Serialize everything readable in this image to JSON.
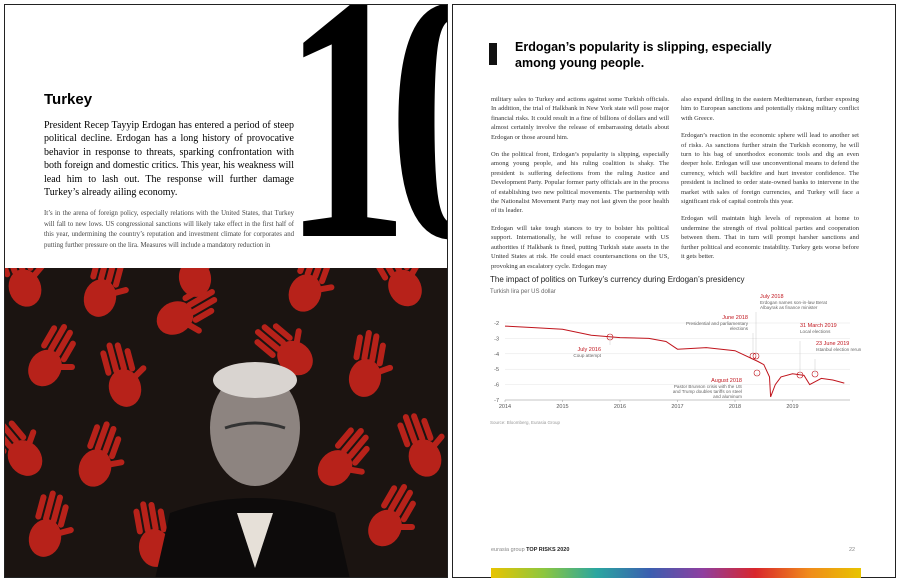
{
  "left_page": {
    "section_number": "10",
    "title": "Turkey",
    "lead": "President Recep Tayyip Erdogan has entered a period of steep political decline. Erdogan has a long history of provocative behavior in response to threats, sparking confrontation with both foreign and domestic critics. This year, his weakness will lead him to lash out. The response will further damage Turkey’s already ailing economy.",
    "body": "It’s in the arena of foreign policy, especially relations with the United States, that Turkey will fall to new lows. US congressional sanctions will likely take effect in the first half of this year, undermining the country’s reputation and investment climate for corporates and putting further pressure on the lira. Measures will include a mandatory reduction in"
  },
  "right_page": {
    "heading": "Erdogan’s popularity is slipping, especially among young people.",
    "columns": [
      [
        "military sales to Turkey and actions against some Turkish officials. In addition, the trial of Halkbank in New York state will pose major financial risks. It could result in a fine of billions of dollars and will almost certainly involve the release of embarrassing details about Erdogan or those around him.",
        "On the political front, Erdogan’s popularity is slipping, especially among young people, and his ruling coalition is shaky. The president is suffering defections from the ruling Justice and Development Party. Popular former party officials are in the process of establishing two new political movements. The partnership with the Nationalist Movement Party may not last given the poor health of its leader.",
        "Erdogan will take tough stances to try to bolster his political support. Internationally, he will refuse to cooperate with US authorities if Halkbank is fined, putting Turkish state assets in the United States at risk. He could enact countersanctions on the US, provoking an escalatory cycle. Erdogan may"
      ],
      [
        "also expand drilling in the eastern Mediterranean, further exposing him to European sanctions and potentially risking military conflict with Greece.",
        "Erdogan’s reaction in the economic sphere will lead to another set of risks. As sanctions further strain the Turkish economy, he will turn to his bag of unorthodox economic tools and dig an even deeper hole. Erdogan will use unconventional means to defend the currency, which will backfire and hurt investor confidence. The president is inclined to order state-owned banks to intervene in the market with sales of foreign currencies, and Turkey will face a significant risk of capital controls this year.",
        "Erdogan will maintain high levels of repression at home to undermine the strength of rival political parties and cooperation between them. That in turn will prompt harsher sanctions and further political and economic instability. Turkey gets worse before it gets better."
      ]
    ],
    "footer": {
      "brand": "eurasia group",
      "report": "TOP RISKS 2020",
      "page": "22"
    }
  },
  "chart_data": {
    "type": "line",
    "title": "The impact of politics on Turkey’s currency during Erdogan’s presidency",
    "subtitle": "Turkish lira per US dollar",
    "source": "Source: Bloomberg, Eurasia Group",
    "color": "#c0141c",
    "x": [
      2014.0,
      2014.5,
      2015.0,
      2015.5,
      2016.0,
      2016.5,
      2016.8,
      2017.0,
      2017.5,
      2018.0,
      2018.4,
      2018.5,
      2018.6,
      2018.62,
      2018.7,
      2018.8,
      2019.0,
      2019.2,
      2019.3,
      2019.5,
      2019.7,
      2019.9
    ],
    "values": [
      -2.2,
      -2.3,
      -2.4,
      -2.8,
      -2.95,
      -3.0,
      -3.2,
      -3.7,
      -3.6,
      -3.8,
      -4.5,
      -4.7,
      -5.5,
      -6.8,
      -6.0,
      -5.5,
      -5.3,
      -5.4,
      -6.0,
      -5.6,
      -5.7,
      -5.9
    ],
    "xlim": [
      2014,
      2020
    ],
    "xticks": [
      2014,
      2015,
      2016,
      2017,
      2018,
      2019
    ],
    "ylim": [
      -7,
      -2
    ],
    "yticks": [
      -2,
      -3,
      -4,
      -5,
      -6,
      -7
    ],
    "grid": true,
    "annotations": [
      {
        "date": "July 2016",
        "text": "Coup attempt"
      },
      {
        "date": "June 2018",
        "text": "Presidential and parliamentary elections"
      },
      {
        "date": "July 2018",
        "text": "Erdogan names son-in-law Berat Albayrak as finance minister"
      },
      {
        "date": "August 2018",
        "text": "Pastor Brunson crisis with the US and Trump doubles tariffs on steel and aluminum"
      },
      {
        "date": "31 March 2019",
        "text": "Local elections"
      },
      {
        "date": "23 June 2019",
        "text": "Istanbul election rerun"
      }
    ]
  }
}
